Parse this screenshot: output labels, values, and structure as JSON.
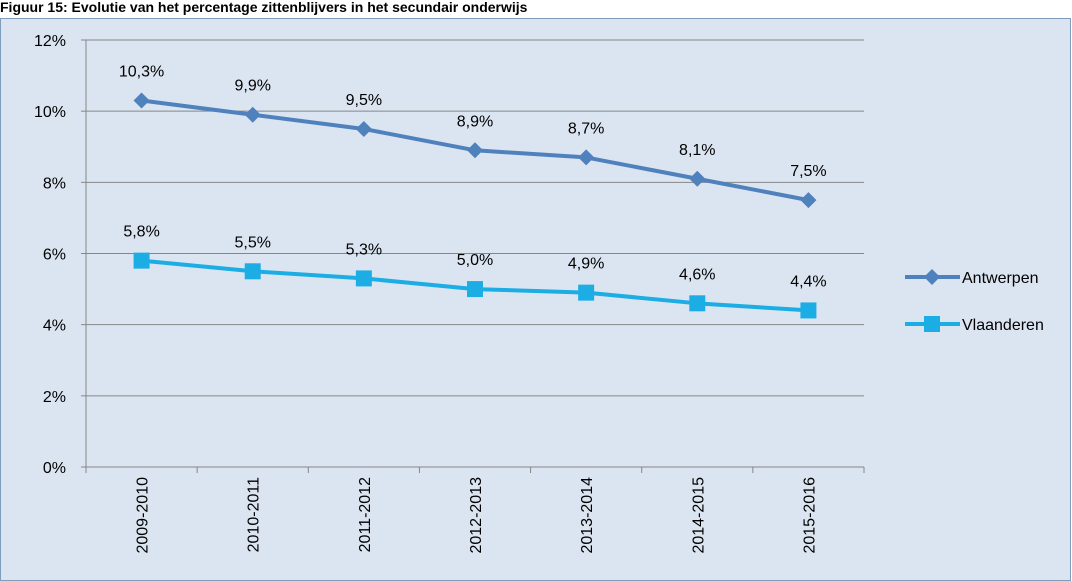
{
  "chart_data": {
    "type": "line",
    "title": "Figuur 15: Evolutie van het percentage zittenblijvers in het secundair onderwijs",
    "categories": [
      "2009-2010",
      "2010-2011",
      "2011-2012",
      "2012-2013",
      "2013-2014",
      "2014-2015",
      "2015-2016"
    ],
    "series": [
      {
        "name": "Antwerpen",
        "color": "#4f81bd",
        "marker": "diamond",
        "values": [
          10.3,
          9.9,
          9.5,
          8.9,
          8.7,
          8.1,
          7.5
        ],
        "value_labels": [
          "10,3%",
          "9,9%",
          "9,5%",
          "8,9%",
          "8,7%",
          "8,1%",
          "7,5%"
        ]
      },
      {
        "name": "Vlaanderen",
        "color": "#1cade4",
        "marker": "square",
        "values": [
          5.8,
          5.5,
          5.3,
          5.0,
          4.9,
          4.6,
          4.4
        ],
        "value_labels": [
          "5,8%",
          "5,5%",
          "5,3%",
          "5,0%",
          "4,9%",
          "4,6%",
          "4,4%"
        ]
      }
    ],
    "ylim": [
      0,
      12
    ],
    "yticks": [
      {
        "value": 0,
        "label": "0%"
      },
      {
        "value": 2,
        "label": "2%"
      },
      {
        "value": 4,
        "label": "4%"
      },
      {
        "value": 6,
        "label": "6%"
      },
      {
        "value": 8,
        "label": "8%"
      },
      {
        "value": 10,
        "label": "10%"
      },
      {
        "value": 12,
        "label": "12%"
      }
    ],
    "grid": true,
    "legend": "right"
  }
}
